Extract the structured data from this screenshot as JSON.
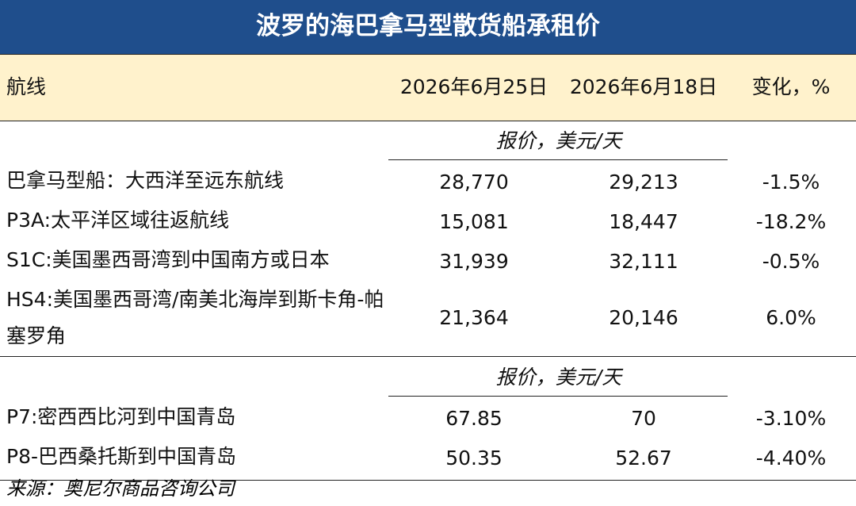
{
  "title": "波罗的海巴拿马型散货船承租价",
  "header": [
    "航线",
    "2026年6月25日",
    "2026年6月18日",
    "变化，%"
  ],
  "sections": [
    {
      "unit": "报价，美元/天",
      "rows": [
        [
          "巴拿马型船：大西洋至远东航线",
          "28,770",
          "29,213",
          "-1.5%"
        ],
        [
          "P3A:太平洋区域往返航线",
          "15,081",
          "18,447",
          "-18.2%"
        ],
        [
          "S1C:美国墨西哥湾到中国南方或日本",
          "31,939",
          "32,111",
          "-0.5%"
        ],
        [
          "HS4:美国墨西哥湾/南美北海岸到斯卡角-帕塞罗角",
          "21,364",
          "20,146",
          "6.0%"
        ]
      ]
    },
    {
      "unit": "报价，美元/天",
      "rows": [
        [
          "P7:密西西比河到中国青岛",
          "67.85",
          "70",
          "-3.10%"
        ],
        [
          "P8-巴西桑托斯到中国青岛",
          "50.35",
          "52.67",
          "-4.40%"
        ]
      ]
    }
  ],
  "source": "来源：奥尼尔商品咨询公司"
}
